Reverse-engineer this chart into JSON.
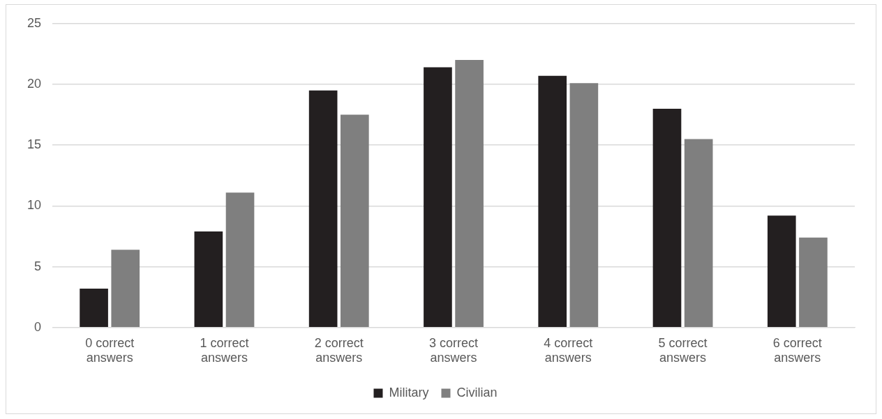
{
  "chart_data": {
    "type": "bar",
    "categories": [
      "0 correct answers",
      "1 correct answers",
      "2 correct answers",
      "3 correct answers",
      "4 correct answers",
      "5 correct answers",
      "6 correct answers"
    ],
    "series": [
      {
        "name": "Military",
        "color": "#231f20",
        "values": [
          3.2,
          7.9,
          19.5,
          21.4,
          20.7,
          18.0,
          9.2
        ]
      },
      {
        "name": "Civilian",
        "color": "#7f7f7f",
        "values": [
          6.4,
          11.1,
          17.5,
          22.0,
          20.1,
          15.5,
          7.4
        ]
      }
    ],
    "ylim": [
      0,
      25
    ],
    "yticks": [
      0,
      5,
      10,
      15,
      20,
      25
    ],
    "grid": "y",
    "legend": "bottom"
  }
}
